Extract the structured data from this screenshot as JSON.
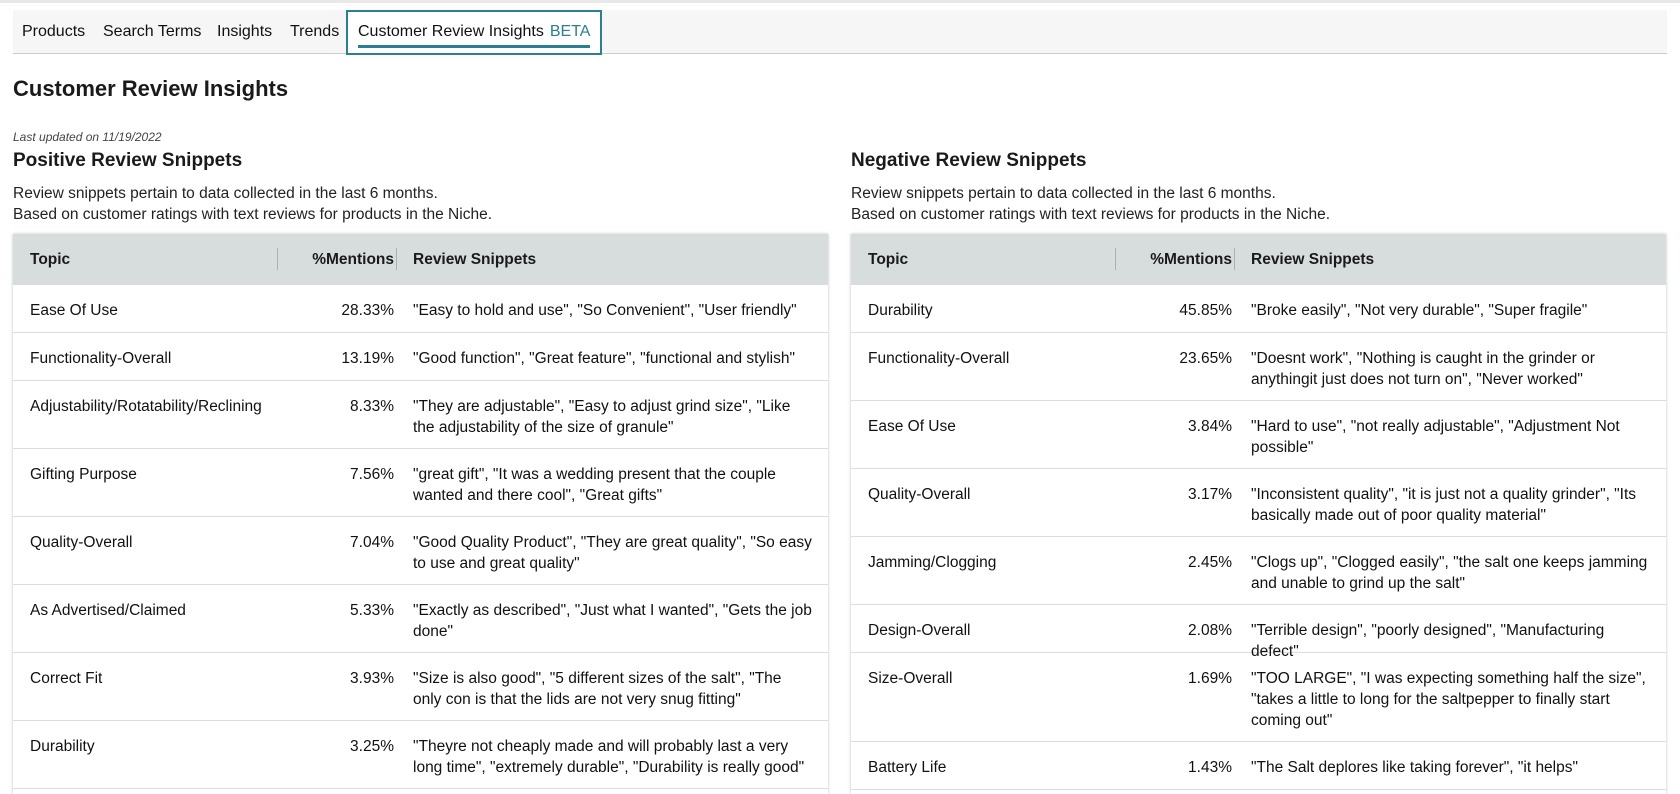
{
  "tabs": [
    {
      "label": "Products"
    },
    {
      "label": "Search Terms"
    },
    {
      "label": "Insights"
    },
    {
      "label": "Trends"
    },
    {
      "label": "Customer Review Insights",
      "badge": "BETA",
      "active": true
    }
  ],
  "page": {
    "title": "Customer Review Insights",
    "last_updated": "Last updated on 11/19/2022"
  },
  "columns": {
    "topic": "Topic",
    "mentions": "%Mentions",
    "snippets": "Review Snippets"
  },
  "positive": {
    "title": "Positive Review Snippets",
    "desc1": "Review snippets pertain to data collected in the last 6 months.",
    "desc2": "Based on customer ratings with text reviews for products in the Niche.",
    "rows": [
      {
        "topic": "Ease Of Use",
        "pct": "28.33%",
        "snippet": "\"Easy to hold and use\", \"So Convenient\", \"User friendly\""
      },
      {
        "topic": "Functionality-Overall",
        "pct": "13.19%",
        "snippet": "\"Good function\", \"Great feature\", \"functional and stylish\""
      },
      {
        "topic": "Adjustability/Rotatability/Reclining",
        "pct": "8.33%",
        "snippet": "\"They are adjustable\", \"Easy to adjust grind size\", \"Like the adjustability of the size of granule\""
      },
      {
        "topic": "Gifting Purpose",
        "pct": "7.56%",
        "snippet": "\"great gift\", \"It was a wedding present that the couple wanted and there cool\", \"Great gifts\""
      },
      {
        "topic": "Quality-Overall",
        "pct": "7.04%",
        "snippet": "\"Good Quality Product\", \"They are great quality\", \"So easy to use and great quality\""
      },
      {
        "topic": "As Advertised/Claimed",
        "pct": "5.33%",
        "snippet": "\"Exactly as described\", \"Just what I wanted\", \"Gets the job done\""
      },
      {
        "topic": "Correct Fit",
        "pct": "3.93%",
        "snippet": "\"Size is also good\", \"5 different sizes of the salt\", \"The only con is that the lids are not very snug fitting\""
      },
      {
        "topic": "Durability",
        "pct": "3.25%",
        "snippet": "\"Theyre not cheaply made and will probably last a very long time\", \"extremely durable\", \"Durability is really good\""
      }
    ]
  },
  "negative": {
    "title": "Negative Review Snippets",
    "desc1": "Review snippets pertain to data collected in the last 6 months.",
    "desc2": "Based on customer ratings with text reviews for products in the Niche.",
    "rows": [
      {
        "topic": "Durability",
        "pct": "45.85%",
        "snippet": "\"Broke easily\", \"Not very durable\", \"Super fragile\""
      },
      {
        "topic": "Functionality-Overall",
        "pct": "23.65%",
        "snippet": "\"Doesnt work\", \"Nothing is caught in the grinder or anythingit just does not turn on\", \"Never worked\""
      },
      {
        "topic": "Ease Of Use",
        "pct": "3.84%",
        "snippet": "\"Hard to use\", \"not really adjustable\", \"Adjustment Not possible\""
      },
      {
        "topic": "Quality-Overall",
        "pct": "3.17%",
        "snippet": "\"Inconsistent quality\", \"it is just not a quality grinder\", \"Its basically made out of poor quality material\""
      },
      {
        "topic": "Jamming/Clogging",
        "pct": "2.45%",
        "snippet": "\"Clogs up\", \"Clogged easily\", \"the salt one keeps jamming and unable to grind up the salt\""
      },
      {
        "topic": "Design-Overall",
        "pct": "2.08%",
        "snippet": "\"Terrible design\", \"poorly designed\", \"Manufacturing defect\""
      },
      {
        "topic": "Size-Overall",
        "pct": "1.69%",
        "snippet": "\"TOO LARGE\", \"I was expecting something half the size\", \"takes a little to long for the saltpepper to finally start coming out\""
      },
      {
        "topic": "Battery Life",
        "pct": "1.43%",
        "snippet": "\"The Salt deplores like taking forever\", \"it helps\""
      }
    ]
  }
}
